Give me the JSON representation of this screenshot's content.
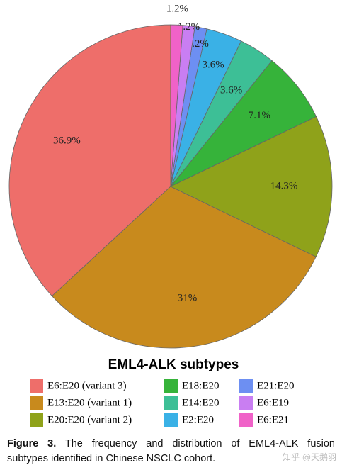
{
  "chart_data": {
    "type": "pie",
    "legend_title": "EML4-ALK subtypes",
    "categories": [
      "E6:E20 (variant 3)",
      "E13:E20 (variant 1)",
      "E20:E20 (variant 2)",
      "E18:E20",
      "E14:E20",
      "E2:E20",
      "E21:E20",
      "E6:E19",
      "E6:E21"
    ],
    "values": [
      36.9,
      31,
      14.3,
      7.1,
      3.6,
      3.6,
      1.2,
      1.2,
      1.2
    ],
    "value_labels": [
      "36.9%",
      "31%",
      "14.3%",
      "7.1%",
      "3.6%",
      "3.6%",
      "1.2%",
      "1.2%",
      "1.2%"
    ],
    "colors": [
      "#ee6e6a",
      "#c88a1d",
      "#8fa21a",
      "#36b33a",
      "#3dbf96",
      "#3ab1e6",
      "#6d8ff2",
      "#c97ef2",
      "#f062c8"
    ]
  },
  "caption": {
    "label": "Figure 3.",
    "lines": [
      "The frequency and distribution of EML4-ALK fusion",
      "subtypes identified in Chinese NSCLC cohort."
    ]
  },
  "watermark": "知乎 @天鹅羽"
}
